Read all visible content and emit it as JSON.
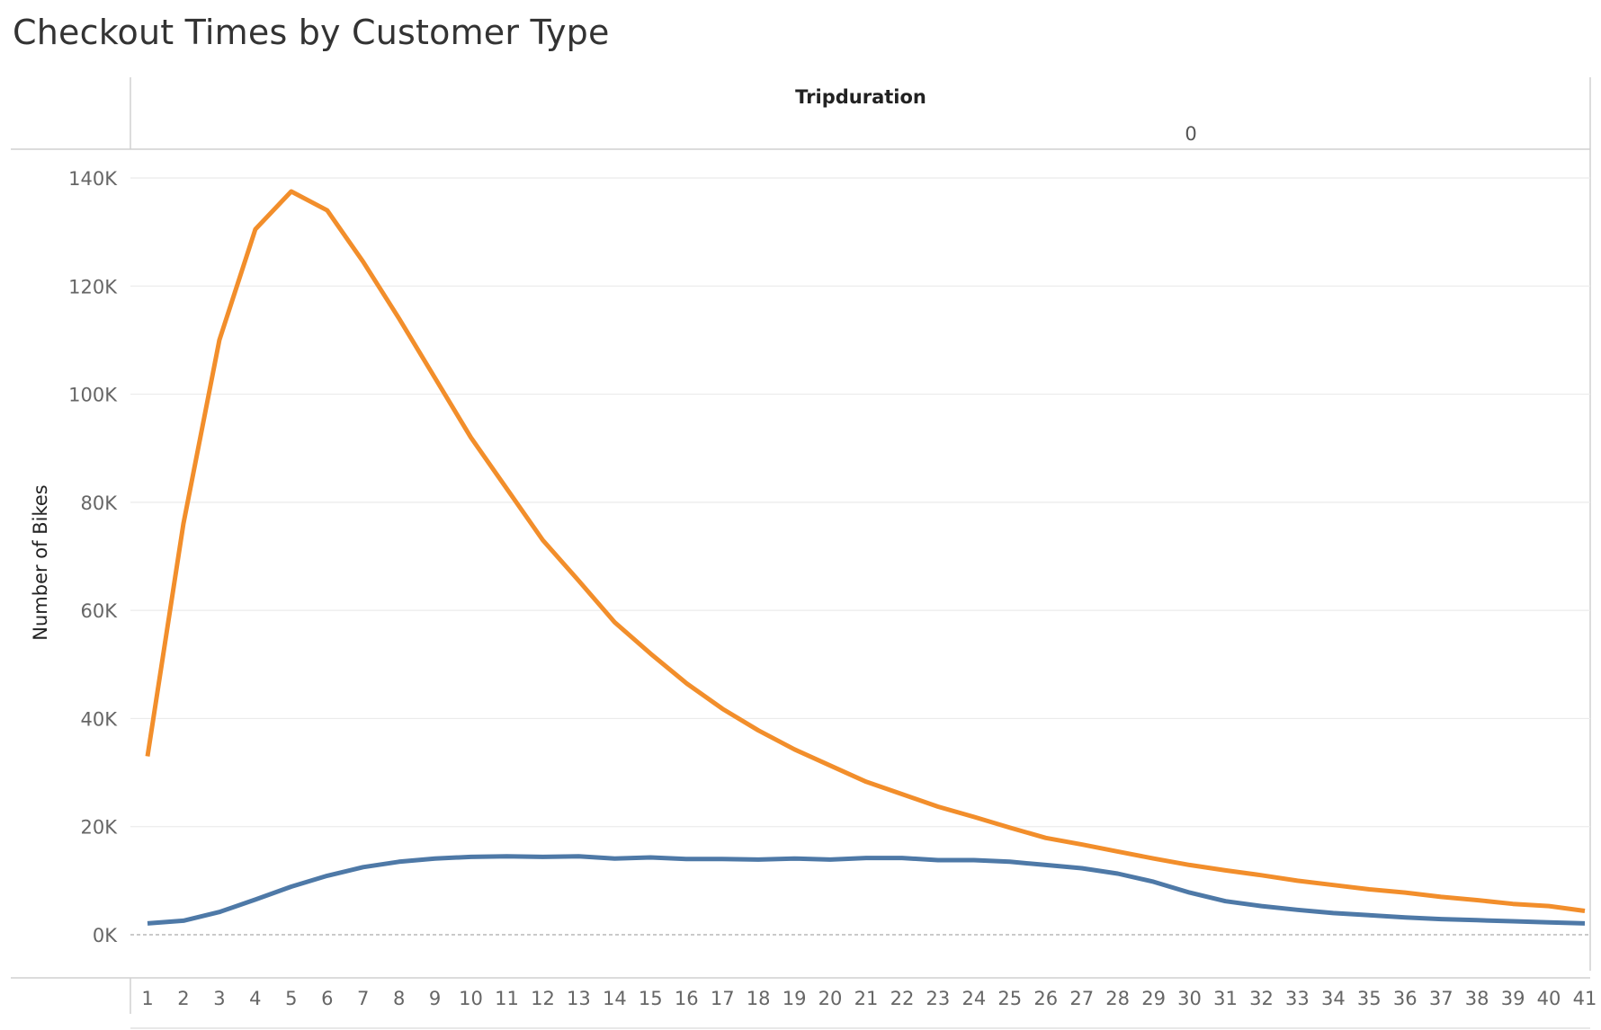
{
  "chart_data": {
    "type": "line",
    "title": "Checkout Times by Customer Type",
    "column_header": {
      "title": "Tripduration",
      "value": "0"
    },
    "ylabel": "Number of Bikes",
    "xlabel": "",
    "ylim": [
      0,
      140000
    ],
    "y_ticks": [
      {
        "value": 0,
        "label": "0K"
      },
      {
        "value": 20000,
        "label": "20K"
      },
      {
        "value": 40000,
        "label": "40K"
      },
      {
        "value": 60000,
        "label": "60K"
      },
      {
        "value": 80000,
        "label": "80K"
      },
      {
        "value": 100000,
        "label": "100K"
      },
      {
        "value": 120000,
        "label": "120K"
      },
      {
        "value": 140000,
        "label": "140K"
      }
    ],
    "x": [
      "1",
      "2",
      "3",
      "4",
      "5",
      "6",
      "7",
      "8",
      "9",
      "10",
      "11",
      "12",
      "13",
      "14",
      "15",
      "16",
      "17",
      "18",
      "19",
      "20",
      "21",
      "22",
      "23",
      "24",
      "25",
      "26",
      "27",
      "28",
      "29",
      "30",
      "31",
      "32",
      "33",
      "34",
      "35",
      "36",
      "37",
      "38",
      "39",
      "40",
      "41"
    ],
    "grid": true,
    "legend": "none",
    "series": [
      {
        "color": "#f28e2b",
        "values": [
          33000,
          76000,
          110000,
          130500,
          137500,
          134000,
          124500,
          114000,
          103000,
          92000,
          82500,
          73000,
          65500,
          57800,
          52000,
          46500,
          41800,
          37800,
          34300,
          31300,
          28300,
          26000,
          23700,
          21800,
          19800,
          17900,
          16700,
          15400,
          14100,
          12900,
          11900,
          11000,
          10000,
          9200,
          8400,
          7800,
          7000,
          6400,
          5700,
          5300,
          4400
        ]
      },
      {
        "color": "#4e79a7",
        "values": [
          2100,
          2600,
          4200,
          6500,
          8900,
          10900,
          12500,
          13500,
          14100,
          14400,
          14500,
          14400,
          14500,
          14100,
          14300,
          14000,
          14000,
          13900,
          14100,
          13900,
          14200,
          14200,
          13800,
          13800,
          13500,
          12900,
          12300,
          11300,
          9800,
          7800,
          6200,
          5300,
          4600,
          4000,
          3600,
          3200,
          2900,
          2700,
          2500,
          2300,
          2100
        ]
      }
    ]
  }
}
